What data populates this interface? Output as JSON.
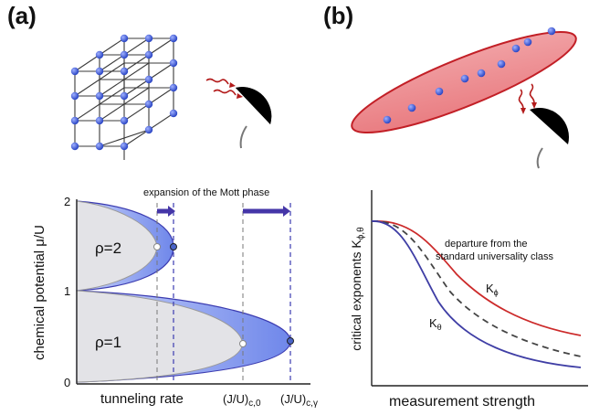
{
  "panel_a": {
    "label": "(a)",
    "annotation": "expansion of the Mott phase",
    "y_label": "chemical potential  μ/U",
    "x_label": "tunneling rate",
    "y_ticks": [
      "2",
      "1",
      "0"
    ],
    "phase_upper": "ρ=2",
    "phase_lower": "ρ=1",
    "crit_0_main": "(J/U)",
    "crit_0_sub": "c,0",
    "crit_gamma_main": "(J/U)",
    "crit_gamma_sub": "c,γ"
  },
  "panel_b": {
    "label": "(b)",
    "y_label_main": "critical exponents  K",
    "y_label_sub": "ϕ,θ",
    "x_label": "measurement strength",
    "note_line1": "departure from the",
    "note_line2": "standard universality class",
    "curve_phi_main": "K",
    "curve_phi_sub": "ϕ",
    "curve_theta_main": "K",
    "curve_theta_sub": "θ"
  },
  "colors": {
    "lattice_dot": "#3a56d4",
    "lobe_fill_blue": "#7f95ee",
    "lobe_fill_gray": "#e4e4e8",
    "arrow": "#4536a8",
    "curve_red": "#cc2a2a",
    "curve_blue": "#3f3ea5",
    "ellipse_fill": "#e46a6f",
    "detector": "#000000"
  }
}
